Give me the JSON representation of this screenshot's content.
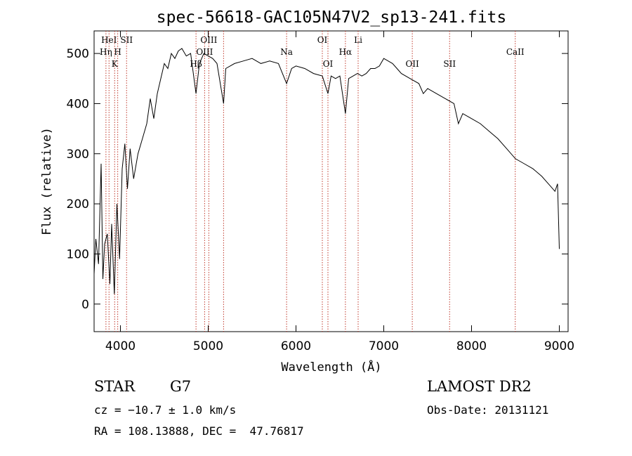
{
  "colors": {
    "background": "#ffffff",
    "ink": "#000000",
    "line_marker": "#c0392b"
  },
  "chart_data": {
    "type": "line",
    "title": "spec-56618-GAC105N47V2_sp13-241.fits",
    "xlabel": "Wavelength (Å)",
    "ylabel": "Flux (relative)",
    "xlim": [
      3700,
      9100
    ],
    "ylim": [
      -55,
      545
    ],
    "xticks": [
      4000,
      5000,
      6000,
      7000,
      8000,
      9000
    ],
    "yticks": [
      0,
      100,
      200,
      300,
      400,
      500
    ],
    "grid": false,
    "series": [
      {
        "x": [
          3700,
          3720,
          3750,
          3780,
          3800,
          3820,
          3850,
          3880,
          3900,
          3930,
          3960,
          3990,
          4020,
          4050,
          4080,
          4110,
          4150,
          4200,
          4250,
          4300,
          4340,
          4380,
          4420,
          4460,
          4500,
          4540,
          4580,
          4620,
          4660,
          4700,
          4750,
          4800,
          4861,
          4900,
          4950,
          5000,
          5050,
          5100,
          5175,
          5200,
          5300,
          5400,
          5500,
          5600,
          5700,
          5800,
          5893,
          5950,
          6000,
          6100,
          6200,
          6300,
          6364,
          6400,
          6450,
          6500,
          6563,
          6600,
          6650,
          6700,
          6750,
          6800,
          6850,
          6900,
          6950,
          7000,
          7050,
          7100,
          7150,
          7200,
          7300,
          7400,
          7450,
          7500,
          7600,
          7700,
          7800,
          7850,
          7900,
          8000,
          8100,
          8200,
          8300,
          8400,
          8500,
          8600,
          8700,
          8800,
          8900,
          8950,
          8980,
          9000
        ],
        "y": [
          60,
          130,
          80,
          280,
          50,
          120,
          140,
          40,
          160,
          20,
          200,
          90,
          270,
          320,
          230,
          310,
          250,
          300,
          330,
          360,
          410,
          370,
          420,
          450,
          480,
          470,
          500,
          490,
          505,
          510,
          495,
          500,
          420,
          480,
          500,
          495,
          490,
          480,
          400,
          470,
          480,
          485,
          490,
          480,
          485,
          480,
          440,
          470,
          475,
          470,
          460,
          455,
          420,
          455,
          450,
          455,
          380,
          450,
          455,
          460,
          455,
          460,
          470,
          470,
          475,
          490,
          485,
          480,
          470,
          460,
          450,
          440,
          420,
          430,
          420,
          410,
          400,
          360,
          380,
          370,
          360,
          345,
          330,
          310,
          290,
          280,
          270,
          255,
          235,
          225,
          240,
          110
        ]
      }
    ],
    "line_markers": [
      {
        "label": "HeI",
        "x": 3870,
        "row": 1
      },
      {
        "label": "SII",
        "x": 4070,
        "row": 1
      },
      {
        "label": "Hη",
        "x": 3835,
        "row": 2
      },
      {
        "label": "H",
        "x": 3969,
        "row": 2
      },
      {
        "label": "K",
        "x": 3934,
        "row": 3
      },
      {
        "label": "OIII",
        "x": 5007,
        "row": 1
      },
      {
        "label": "OIII",
        "x": 4959,
        "row": 2
      },
      {
        "label": "Hβ",
        "x": 4861,
        "row": 3
      },
      {
        "label": "",
        "x": 5175,
        "row": 0
      },
      {
        "label": "Na",
        "x": 5893,
        "row": 2
      },
      {
        "label": "OI",
        "x": 6300,
        "row": 1
      },
      {
        "label": "Hα",
        "x": 6563,
        "row": 2
      },
      {
        "label": "Li",
        "x": 6708,
        "row": 1
      },
      {
        "label": "OI",
        "x": 6364,
        "row": 3
      },
      {
        "label": "OII",
        "x": 7325,
        "row": 3
      },
      {
        "label": "SII",
        "x": 7750,
        "row": 3
      },
      {
        "label": "CaII",
        "x": 8498,
        "row": 2
      }
    ]
  },
  "info": {
    "object_class": "STAR",
    "subclass": "G7",
    "survey": "LAMOST DR2",
    "cz": "cz = −10.7 ± 1.0 km/s",
    "obs_date": "Obs-Date: 20131121",
    "coords": "RA = 108.13888, DEC =  47.76817"
  }
}
